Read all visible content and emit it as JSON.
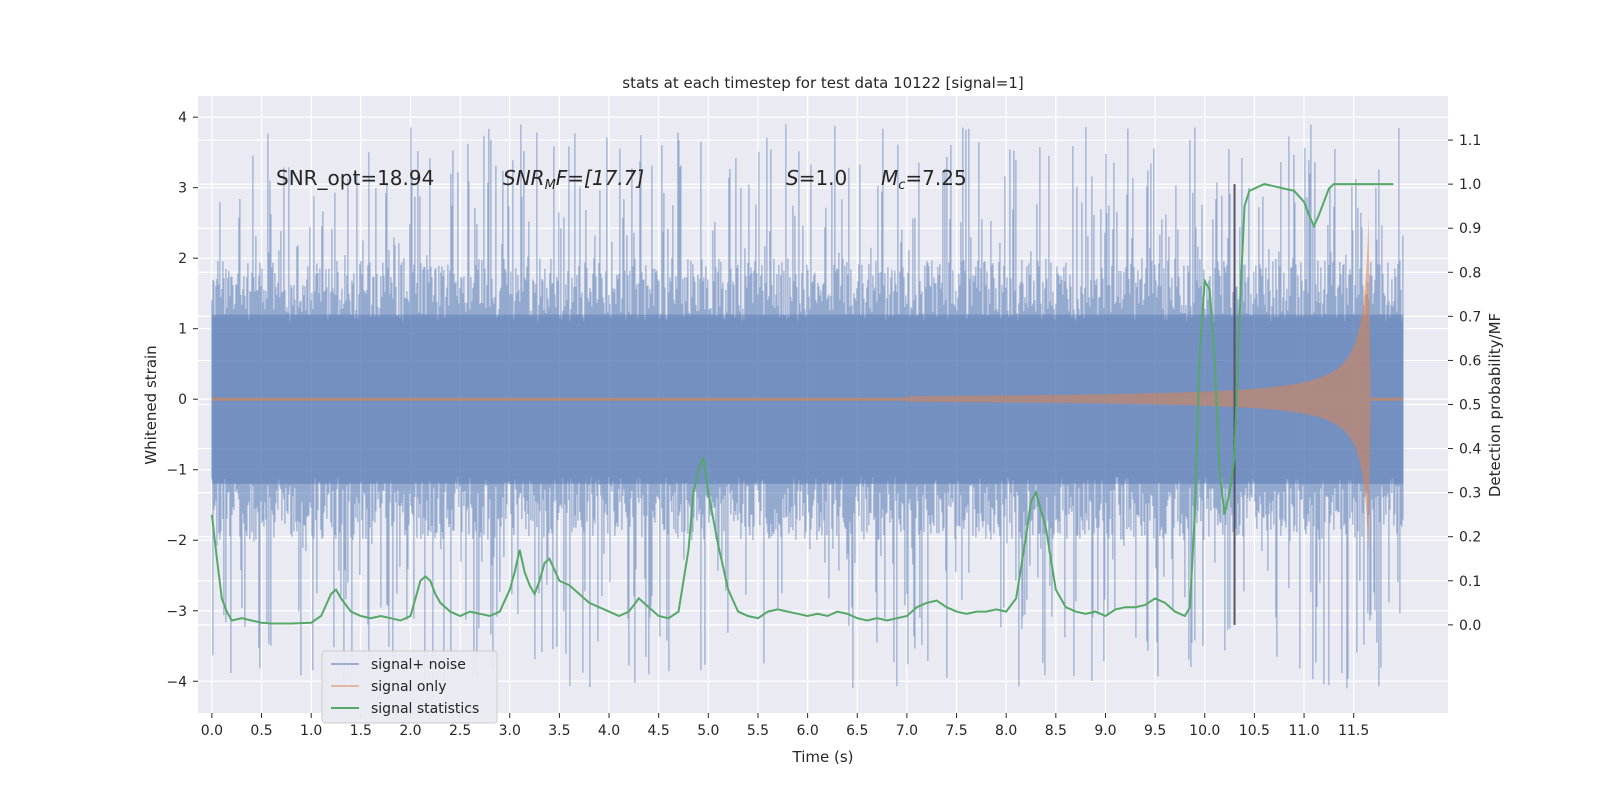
{
  "chart_data": {
    "type": "line",
    "title": "stats at each timestep for test data 10122 [signal=1]",
    "xlabel": "Time (s)",
    "ylabel_left": "Whitened strain",
    "ylabel_right": "Detection probability/MF",
    "xlim": [
      -0.14,
      12.45
    ],
    "ylim_left": [
      -4.45,
      4.3
    ],
    "ylim_right": [
      -0.2,
      1.2
    ],
    "x_ticks": [
      "0.0",
      "0.5",
      "1.0",
      "1.5",
      "2.0",
      "2.5",
      "3.0",
      "3.5",
      "4.0",
      "4.5",
      "5.0",
      "5.5",
      "6.0",
      "6.5",
      "7.0",
      "7.5",
      "8.0",
      "8.5",
      "9.0",
      "9.5",
      "10.0",
      "10.5",
      "11.0",
      "11.5"
    ],
    "y_left_ticks": [
      "4",
      "3",
      "2",
      "1",
      "0",
      "−1",
      "−2",
      "−3",
      "−4"
    ],
    "y_right_ticks": [
      "1.1",
      "1.0",
      "0.9",
      "0.8",
      "0.7",
      "0.6",
      "0.5",
      "0.4",
      "0.3",
      "0.2",
      "0.1",
      "0.0"
    ],
    "annotations": {
      "snr_opt": "SNR_opt=18.94",
      "snr_mf_label": "SNR",
      "snr_mf_sub": "M",
      "snr_mf_rest": "F=[17.7]",
      "s_label": "S",
      "s_value": "=1.0",
      "mc_label": "M",
      "mc_sub": "c",
      "mc_value": "=7.25"
    },
    "legend": {
      "placement": "lower-left",
      "entries": [
        "signal+ noise",
        "signal only",
        "signal statistics"
      ]
    },
    "marker_time": 10.3,
    "series": [
      {
        "name": "signal+ noise",
        "color": "#4c72b0",
        "time_range": [
          0.0,
          12.0
        ],
        "envelope_lower": -2.0,
        "envelope_upper": 2.0,
        "peak_max": 3.9,
        "peak_min": -4.1
      },
      {
        "name": "signal only",
        "color": "#dd8452",
        "t_start": 7.0,
        "t_end": 11.65,
        "amplitude_final": 2.6
      },
      {
        "name": "signal statistics",
        "color": "#55a868",
        "x": [
          0.0,
          0.05,
          0.1,
          0.15,
          0.2,
          0.3,
          0.4,
          0.5,
          0.6,
          0.8,
          1.0,
          1.1,
          1.2,
          1.25,
          1.3,
          1.4,
          1.5,
          1.6,
          1.7,
          1.8,
          1.9,
          2.0,
          2.1,
          2.15,
          2.2,
          2.25,
          2.3,
          2.4,
          2.5,
          2.6,
          2.7,
          2.8,
          2.9,
          3.0,
          3.05,
          3.1,
          3.15,
          3.2,
          3.25,
          3.3,
          3.35,
          3.4,
          3.5,
          3.6,
          3.7,
          3.8,
          3.9,
          4.0,
          4.1,
          4.2,
          4.3,
          4.4,
          4.5,
          4.6,
          4.7,
          4.8,
          4.85,
          4.9,
          4.95,
          5.0,
          5.1,
          5.2,
          5.3,
          5.4,
          5.5,
          5.6,
          5.7,
          5.8,
          5.9,
          6.0,
          6.1,
          6.2,
          6.3,
          6.4,
          6.5,
          6.6,
          6.7,
          6.8,
          6.9,
          7.0,
          7.1,
          7.2,
          7.3,
          7.4,
          7.5,
          7.6,
          7.7,
          7.8,
          7.9,
          8.0,
          8.1,
          8.2,
          8.25,
          8.3,
          8.4,
          8.5,
          8.6,
          8.7,
          8.8,
          8.9,
          9.0,
          9.1,
          9.2,
          9.3,
          9.4,
          9.5,
          9.6,
          9.7,
          9.8,
          9.85,
          9.9,
          9.95,
          10.0,
          10.05,
          10.1,
          10.15,
          10.2,
          10.25,
          10.3,
          10.35,
          10.4,
          10.45,
          10.5,
          10.6,
          10.7,
          10.8,
          10.9,
          11.0,
          11.05,
          11.1,
          11.15,
          11.2,
          11.25,
          11.3,
          11.4,
          11.5,
          11.6,
          11.7,
          11.8,
          11.9
        ],
        "y": [
          0.25,
          0.15,
          0.06,
          0.03,
          0.01,
          0.015,
          0.01,
          0.005,
          0.003,
          0.003,
          0.005,
          0.02,
          0.07,
          0.08,
          0.06,
          0.03,
          0.02,
          0.015,
          0.02,
          0.015,
          0.01,
          0.02,
          0.1,
          0.11,
          0.1,
          0.07,
          0.05,
          0.03,
          0.02,
          0.03,
          0.025,
          0.02,
          0.03,
          0.08,
          0.12,
          0.17,
          0.12,
          0.09,
          0.07,
          0.1,
          0.14,
          0.15,
          0.1,
          0.09,
          0.07,
          0.05,
          0.04,
          0.03,
          0.02,
          0.03,
          0.06,
          0.04,
          0.02,
          0.015,
          0.03,
          0.17,
          0.3,
          0.35,
          0.38,
          0.3,
          0.18,
          0.08,
          0.03,
          0.02,
          0.015,
          0.03,
          0.035,
          0.03,
          0.025,
          0.02,
          0.025,
          0.02,
          0.03,
          0.025,
          0.015,
          0.01,
          0.015,
          0.01,
          0.015,
          0.02,
          0.04,
          0.05,
          0.055,
          0.04,
          0.03,
          0.025,
          0.03,
          0.03,
          0.035,
          0.03,
          0.06,
          0.2,
          0.28,
          0.3,
          0.22,
          0.08,
          0.04,
          0.03,
          0.025,
          0.03,
          0.02,
          0.035,
          0.04,
          0.04,
          0.045,
          0.06,
          0.05,
          0.03,
          0.02,
          0.04,
          0.25,
          0.62,
          0.78,
          0.76,
          0.6,
          0.35,
          0.25,
          0.3,
          0.38,
          0.7,
          0.95,
          0.985,
          0.99,
          1.0,
          0.995,
          0.99,
          0.985,
          0.96,
          0.93,
          0.905,
          0.93,
          0.96,
          0.99,
          1.0,
          1.0,
          1.0,
          1.0,
          1.0,
          1.0,
          1.0
        ]
      }
    ]
  }
}
